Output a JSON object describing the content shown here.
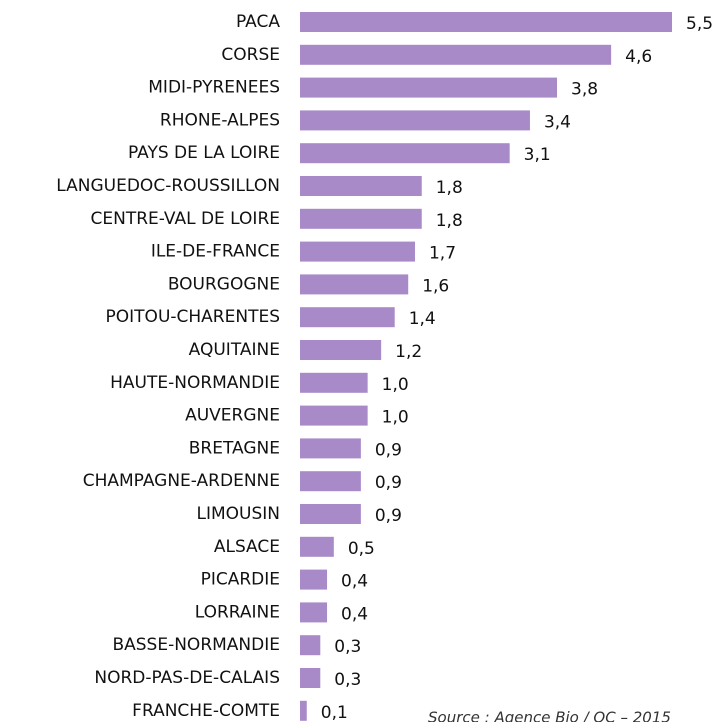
{
  "chart_data": {
    "type": "bar",
    "orientation": "horizontal",
    "categories": [
      "PACA",
      "CORSE",
      "MIDI-PYRENEES",
      "RHONE-ALPES",
      "PAYS DE LA LOIRE",
      "LANGUEDOC-ROUSSILLON",
      "CENTRE-VAL DE LOIRE",
      "ILE-DE-FRANCE",
      "BOURGOGNE",
      "POITOU-CHARENTES",
      "AQUITAINE",
      "HAUTE-NORMANDIE",
      "AUVERGNE",
      "BRETAGNE",
      "CHAMPAGNE-ARDENNE",
      "LIMOUSIN",
      "ALSACE",
      "PICARDIE",
      "LORRAINE",
      "BASSE-NORMANDIE",
      "NORD-PAS-DE-CALAIS",
      "FRANCHE-COMTE"
    ],
    "values": [
      5.5,
      4.6,
      3.8,
      3.4,
      3.1,
      1.8,
      1.8,
      1.7,
      1.6,
      1.4,
      1.2,
      1.0,
      1.0,
      0.9,
      0.9,
      0.9,
      0.5,
      0.4,
      0.4,
      0.3,
      0.3,
      0.1
    ],
    "value_labels": [
      "5,5",
      "4,6",
      "3,8",
      "3,4",
      "3,1",
      "1,8",
      "1,8",
      "1,7",
      "1,6",
      "1,4",
      "1,2",
      "1,0",
      "1,0",
      "0,9",
      "0,9",
      "0,9",
      "0,5",
      "0,4",
      "0,4",
      "0,3",
      "0,3",
      "0,1"
    ],
    "color": "#a98ac8",
    "source": "Source :  Agence Bio / OC – 2015"
  }
}
